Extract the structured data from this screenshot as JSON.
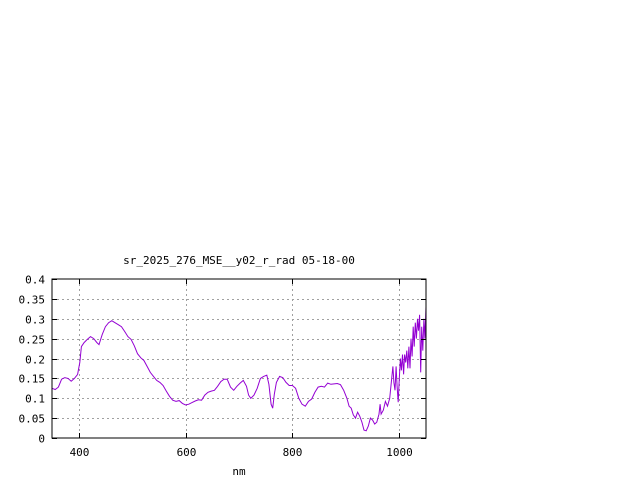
{
  "chart_data": {
    "type": "line",
    "title": "sr_2025_276_MSE__y02_r_rad 05-18-00",
    "xlabel": "nm",
    "ylabel": "",
    "xlim": [
      350,
      1050
    ],
    "ylim": [
      0,
      0.4
    ],
    "x_ticks": [
      400,
      600,
      800,
      1000
    ],
    "x_tick_labels": [
      "400",
      "600",
      "800",
      "1000"
    ],
    "y_ticks": [
      0,
      0.05,
      0.1,
      0.15,
      0.2,
      0.25,
      0.3,
      0.35,
      0.4
    ],
    "y_tick_labels": [
      "0",
      "0.05",
      "0.1",
      "0.15",
      "0.2",
      "0.25",
      "0.3",
      "0.35",
      "0.4"
    ],
    "grid": true,
    "line_color": "#9400d3",
    "series": [
      {
        "points": [
          [
            350,
            0.125
          ],
          [
            356,
            0.122
          ],
          [
            362,
            0.128
          ],
          [
            368,
            0.148
          ],
          [
            374,
            0.152
          ],
          [
            380,
            0.15
          ],
          [
            386,
            0.143
          ],
          [
            392,
            0.15
          ],
          [
            398,
            0.16
          ],
          [
            402,
            0.19
          ],
          [
            405,
            0.23
          ],
          [
            410,
            0.24
          ],
          [
            416,
            0.248
          ],
          [
            422,
            0.255
          ],
          [
            428,
            0.25
          ],
          [
            434,
            0.24
          ],
          [
            438,
            0.235
          ],
          [
            444,
            0.26
          ],
          [
            450,
            0.28
          ],
          [
            456,
            0.29
          ],
          [
            462,
            0.295
          ],
          [
            468,
            0.29
          ],
          [
            474,
            0.285
          ],
          [
            480,
            0.28
          ],
          [
            486,
            0.268
          ],
          [
            492,
            0.255
          ],
          [
            498,
            0.248
          ],
          [
            504,
            0.232
          ],
          [
            510,
            0.212
          ],
          [
            516,
            0.202
          ],
          [
            522,
            0.195
          ],
          [
            528,
            0.18
          ],
          [
            534,
            0.165
          ],
          [
            540,
            0.155
          ],
          [
            546,
            0.145
          ],
          [
            552,
            0.14
          ],
          [
            558,
            0.132
          ],
          [
            564,
            0.118
          ],
          [
            570,
            0.105
          ],
          [
            576,
            0.095
          ],
          [
            582,
            0.092
          ],
          [
            588,
            0.094
          ],
          [
            594,
            0.087
          ],
          [
            600,
            0.083
          ],
          [
            606,
            0.085
          ],
          [
            612,
            0.089
          ],
          [
            618,
            0.093
          ],
          [
            624,
            0.096
          ],
          [
            630,
            0.095
          ],
          [
            636,
            0.108
          ],
          [
            642,
            0.115
          ],
          [
            648,
            0.118
          ],
          [
            654,
            0.12
          ],
          [
            660,
            0.13
          ],
          [
            666,
            0.142
          ],
          [
            672,
            0.148
          ],
          [
            678,
            0.148
          ],
          [
            684,
            0.128
          ],
          [
            690,
            0.12
          ],
          [
            696,
            0.13
          ],
          [
            702,
            0.138
          ],
          [
            708,
            0.145
          ],
          [
            714,
            0.13
          ],
          [
            718,
            0.108
          ],
          [
            722,
            0.1
          ],
          [
            728,
            0.108
          ],
          [
            734,
            0.125
          ],
          [
            740,
            0.15
          ],
          [
            746,
            0.155
          ],
          [
            752,
            0.158
          ],
          [
            756,
            0.135
          ],
          [
            760,
            0.085
          ],
          [
            763,
            0.075
          ],
          [
            766,
            0.11
          ],
          [
            770,
            0.14
          ],
          [
            776,
            0.155
          ],
          [
            782,
            0.152
          ],
          [
            788,
            0.14
          ],
          [
            794,
            0.132
          ],
          [
            800,
            0.132
          ],
          [
            806,
            0.125
          ],
          [
            812,
            0.1
          ],
          [
            818,
            0.085
          ],
          [
            824,
            0.08
          ],
          [
            830,
            0.092
          ],
          [
            836,
            0.098
          ],
          [
            842,
            0.115
          ],
          [
            848,
            0.128
          ],
          [
            854,
            0.13
          ],
          [
            860,
            0.128
          ],
          [
            866,
            0.138
          ],
          [
            872,
            0.135
          ],
          [
            878,
            0.136
          ],
          [
            884,
            0.137
          ],
          [
            890,
            0.134
          ],
          [
            896,
            0.12
          ],
          [
            902,
            0.1
          ],
          [
            906,
            0.08
          ],
          [
            910,
            0.075
          ],
          [
            914,
            0.058
          ],
          [
            918,
            0.05
          ],
          [
            922,
            0.065
          ],
          [
            926,
            0.055
          ],
          [
            930,
            0.04
          ],
          [
            934,
            0.02
          ],
          [
            938,
            0.018
          ],
          [
            942,
            0.03
          ],
          [
            946,
            0.05
          ],
          [
            950,
            0.045
          ],
          [
            954,
            0.035
          ],
          [
            958,
            0.04
          ],
          [
            962,
            0.06
          ],
          [
            964,
            0.085
          ],
          [
            966,
            0.06
          ],
          [
            970,
            0.07
          ],
          [
            974,
            0.092
          ],
          [
            978,
            0.08
          ],
          [
            982,
            0.1
          ],
          [
            985,
            0.14
          ],
          [
            988,
            0.18
          ],
          [
            990,
            0.14
          ],
          [
            992,
            0.12
          ],
          [
            994,
            0.18
          ],
          [
            996,
            0.13
          ],
          [
            998,
            0.09
          ],
          [
            1000,
            0.15
          ],
          [
            1002,
            0.2
          ],
          [
            1004,
            0.17
          ],
          [
            1006,
            0.21
          ],
          [
            1008,
            0.16
          ],
          [
            1010,
            0.21
          ],
          [
            1012,
            0.19
          ],
          [
            1014,
            0.22
          ],
          [
            1016,
            0.175
          ],
          [
            1018,
            0.23
          ],
          [
            1020,
            0.175
          ],
          [
            1022,
            0.25
          ],
          [
            1024,
            0.205
          ],
          [
            1026,
            0.28
          ],
          [
            1028,
            0.23
          ],
          [
            1030,
            0.29
          ],
          [
            1032,
            0.25
          ],
          [
            1034,
            0.3
          ],
          [
            1036,
            0.27
          ],
          [
            1038,
            0.31
          ],
          [
            1040,
            0.165
          ],
          [
            1042,
            0.28
          ],
          [
            1044,
            0.22
          ],
          [
            1046,
            0.3
          ],
          [
            1048,
            0.25
          ],
          [
            1050,
            0.33
          ]
        ]
      }
    ]
  }
}
